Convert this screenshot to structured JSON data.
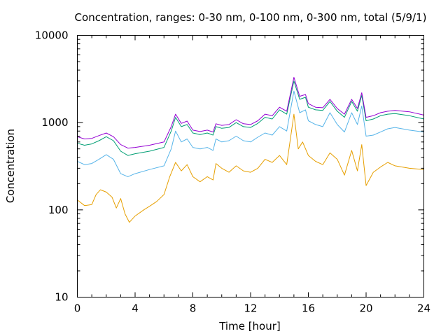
{
  "chart_data": {
    "type": "line",
    "title": "Concentration, ranges: 0-30 nm, 0-100 nm, 0-300 nm, total (5/9/1)",
    "xlabel": "Time [hour]",
    "ylabel": "Concentration",
    "xlim": [
      0,
      24
    ],
    "ylim": [
      10,
      10000
    ],
    "yscale": "log",
    "grid": false,
    "legend": "none",
    "xticks": [
      0,
      4,
      8,
      12,
      16,
      20,
      24
    ],
    "xtick_labels": [
      "0",
      "4",
      "8",
      "12",
      "16",
      "20",
      "24"
    ],
    "yticks": [
      10,
      100,
      1000,
      10000
    ],
    "ytick_labels": [
      "10",
      "100",
      "1000",
      "10000"
    ],
    "series": [
      {
        "color": "#e69f00",
        "points": [
          [
            0,
            130
          ],
          [
            0.5,
            112
          ],
          [
            1,
            115
          ],
          [
            1.3,
            150
          ],
          [
            1.6,
            170
          ],
          [
            2,
            160
          ],
          [
            2.4,
            140
          ],
          [
            2.7,
            105
          ],
          [
            3,
            135
          ],
          [
            3.3,
            90
          ],
          [
            3.6,
            72
          ],
          [
            4,
            85
          ],
          [
            4.6,
            100
          ],
          [
            5,
            110
          ],
          [
            5.5,
            125
          ],
          [
            6,
            150
          ],
          [
            6.4,
            240
          ],
          [
            6.8,
            350
          ],
          [
            7.2,
            280
          ],
          [
            7.6,
            330
          ],
          [
            8,
            240
          ],
          [
            8.5,
            210
          ],
          [
            9,
            240
          ],
          [
            9.4,
            220
          ],
          [
            9.6,
            340
          ],
          [
            10,
            300
          ],
          [
            10.5,
            270
          ],
          [
            11,
            320
          ],
          [
            11.5,
            280
          ],
          [
            12,
            270
          ],
          [
            12.5,
            300
          ],
          [
            13,
            380
          ],
          [
            13.5,
            350
          ],
          [
            14,
            420
          ],
          [
            14.5,
            330
          ],
          [
            15,
            1250
          ],
          [
            15.3,
            500
          ],
          [
            15.6,
            600
          ],
          [
            16,
            420
          ],
          [
            16.5,
            360
          ],
          [
            17,
            330
          ],
          [
            17.5,
            450
          ],
          [
            18,
            380
          ],
          [
            18.5,
            250
          ],
          [
            19,
            480
          ],
          [
            19.4,
            280
          ],
          [
            19.7,
            560
          ],
          [
            20,
            190
          ],
          [
            20.5,
            270
          ],
          [
            21,
            310
          ],
          [
            21.5,
            350
          ],
          [
            22,
            320
          ],
          [
            23,
            300
          ],
          [
            24,
            290
          ]
        ]
      },
      {
        "color": "#56b4e9",
        "points": [
          [
            0,
            360
          ],
          [
            0.5,
            330
          ],
          [
            1,
            340
          ],
          [
            1.5,
            380
          ],
          [
            2,
            430
          ],
          [
            2.5,
            380
          ],
          [
            3,
            260
          ],
          [
            3.5,
            240
          ],
          [
            4,
            260
          ],
          [
            5,
            290
          ],
          [
            6,
            320
          ],
          [
            6.5,
            500
          ],
          [
            6.8,
            800
          ],
          [
            7.2,
            600
          ],
          [
            7.6,
            650
          ],
          [
            8,
            520
          ],
          [
            8.5,
            500
          ],
          [
            9,
            520
          ],
          [
            9.4,
            480
          ],
          [
            9.6,
            650
          ],
          [
            10,
            600
          ],
          [
            10.5,
            620
          ],
          [
            11,
            700
          ],
          [
            11.5,
            620
          ],
          [
            12,
            600
          ],
          [
            12.5,
            680
          ],
          [
            13,
            760
          ],
          [
            13.5,
            720
          ],
          [
            14,
            900
          ],
          [
            14.5,
            800
          ],
          [
            15,
            2300
          ],
          [
            15.4,
            1300
          ],
          [
            15.8,
            1400
          ],
          [
            16,
            1050
          ],
          [
            16.5,
            950
          ],
          [
            17,
            900
          ],
          [
            17.5,
            1300
          ],
          [
            18,
            950
          ],
          [
            18.5,
            780
          ],
          [
            19,
            1300
          ],
          [
            19.4,
            950
          ],
          [
            19.7,
            1550
          ],
          [
            20,
            700
          ],
          [
            20.5,
            720
          ],
          [
            21,
            780
          ],
          [
            21.5,
            850
          ],
          [
            22,
            880
          ],
          [
            23,
            820
          ],
          [
            24,
            780
          ]
        ]
      },
      {
        "color": "#009e73",
        "points": [
          [
            0,
            580
          ],
          [
            0.5,
            550
          ],
          [
            1,
            570
          ],
          [
            1.5,
            620
          ],
          [
            2,
            690
          ],
          [
            2.5,
            620
          ],
          [
            3,
            470
          ],
          [
            3.5,
            420
          ],
          [
            4,
            440
          ],
          [
            5,
            470
          ],
          [
            6,
            520
          ],
          [
            6.5,
            800
          ],
          [
            6.8,
            1150
          ],
          [
            7.2,
            900
          ],
          [
            7.6,
            950
          ],
          [
            8,
            760
          ],
          [
            8.5,
            730
          ],
          [
            9,
            760
          ],
          [
            9.4,
            720
          ],
          [
            9.6,
            900
          ],
          [
            10,
            860
          ],
          [
            10.5,
            880
          ],
          [
            11,
            1000
          ],
          [
            11.5,
            900
          ],
          [
            12,
            880
          ],
          [
            12.5,
            980
          ],
          [
            13,
            1150
          ],
          [
            13.5,
            1100
          ],
          [
            14,
            1400
          ],
          [
            14.5,
            1250
          ],
          [
            15,
            3000
          ],
          [
            15.4,
            1850
          ],
          [
            15.8,
            1950
          ],
          [
            16,
            1500
          ],
          [
            16.5,
            1400
          ],
          [
            17,
            1380
          ],
          [
            17.5,
            1750
          ],
          [
            18,
            1350
          ],
          [
            18.5,
            1150
          ],
          [
            19,
            1750
          ],
          [
            19.4,
            1350
          ],
          [
            19.7,
            2050
          ],
          [
            20,
            1050
          ],
          [
            20.5,
            1100
          ],
          [
            21,
            1200
          ],
          [
            21.5,
            1250
          ],
          [
            22,
            1270
          ],
          [
            23,
            1200
          ],
          [
            24,
            1100
          ]
        ]
      },
      {
        "color": "#9400d3",
        "points": [
          [
            0,
            690
          ],
          [
            0.5,
            650
          ],
          [
            1,
            660
          ],
          [
            1.5,
            710
          ],
          [
            2,
            760
          ],
          [
            2.5,
            690
          ],
          [
            3,
            560
          ],
          [
            3.5,
            510
          ],
          [
            4,
            520
          ],
          [
            5,
            550
          ],
          [
            6,
            600
          ],
          [
            6.5,
            900
          ],
          [
            6.8,
            1250
          ],
          [
            7.2,
            980
          ],
          [
            7.6,
            1040
          ],
          [
            8,
            820
          ],
          [
            8.5,
            790
          ],
          [
            9,
            820
          ],
          [
            9.4,
            780
          ],
          [
            9.6,
            970
          ],
          [
            10,
            930
          ],
          [
            10.5,
            950
          ],
          [
            11,
            1080
          ],
          [
            11.5,
            970
          ],
          [
            12,
            950
          ],
          [
            12.5,
            1050
          ],
          [
            13,
            1250
          ],
          [
            13.5,
            1200
          ],
          [
            14,
            1500
          ],
          [
            14.5,
            1350
          ],
          [
            15,
            3300
          ],
          [
            15.4,
            2000
          ],
          [
            15.8,
            2100
          ],
          [
            16,
            1650
          ],
          [
            16.5,
            1500
          ],
          [
            17,
            1480
          ],
          [
            17.5,
            1850
          ],
          [
            18,
            1450
          ],
          [
            18.5,
            1250
          ],
          [
            19,
            1850
          ],
          [
            19.4,
            1450
          ],
          [
            19.7,
            2200
          ],
          [
            20,
            1150
          ],
          [
            20.5,
            1200
          ],
          [
            21,
            1300
          ],
          [
            21.5,
            1350
          ],
          [
            22,
            1380
          ],
          [
            23,
            1330
          ],
          [
            24,
            1220
          ]
        ]
      }
    ]
  }
}
